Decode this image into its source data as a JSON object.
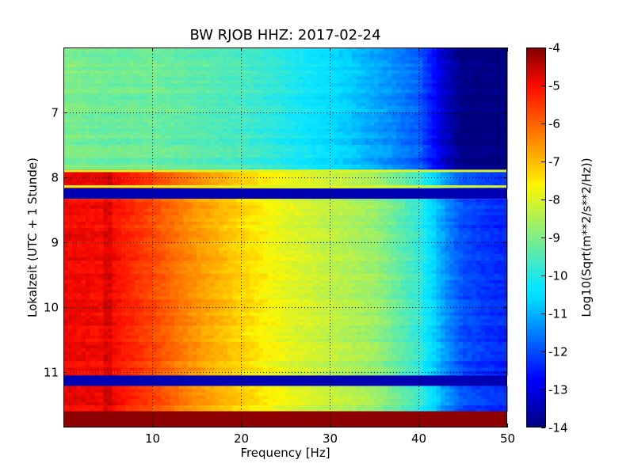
{
  "chart_data": {
    "type": "heatmap",
    "title": "BW RJOB HHZ: 2017-02-24",
    "xlabel": "Frequency [Hz]",
    "ylabel": "Lokalzeit (UTC + 1 Stunde)",
    "colorbar_label": "Log10(Sqrt(m**2/s**2/Hz))",
    "xlim": [
      0,
      50
    ],
    "ylim": [
      6.0,
      11.85
    ],
    "y_inverted": true,
    "x_ticks": [
      "10",
      "20",
      "30",
      "40",
      "50"
    ],
    "x_tick_values": [
      10,
      20,
      30,
      40,
      50
    ],
    "y_ticks": [
      "7",
      "8",
      "9",
      "10",
      "11"
    ],
    "y_tick_values": [
      7,
      8,
      9,
      10,
      11
    ],
    "colorbar_ticks": [
      "-4",
      "-5",
      "-6",
      "-7",
      "-8",
      "-9",
      "-10",
      "-11",
      "-12",
      "-13",
      "-14"
    ],
    "colorbar_tick_values": [
      -4,
      -5,
      -6,
      -7,
      -8,
      -9,
      -10,
      -11,
      -12,
      -13,
      -14
    ],
    "clim": [
      -14,
      -4
    ],
    "colormap": "jet",
    "grid": true,
    "grid_style": "dotted",
    "frequency_profile": {
      "frequency": [
        0,
        4.5,
        5,
        5.5,
        10,
        15,
        20,
        25,
        30,
        35,
        40,
        43,
        45,
        48,
        50
      ],
      "morning_segment": [
        -9,
        -9.2,
        -9.2,
        -9.2,
        -9.2,
        -9.4,
        -9.6,
        -10,
        -10.5,
        -11.1,
        -11.8,
        -13.3,
        -14,
        -14,
        -14
      ],
      "daytime_segment": [
        -4.9,
        -5.0,
        -4.5,
        -5.0,
        -5.7,
        -6.6,
        -7.3,
        -7.9,
        -8.3,
        -8.7,
        -9.8,
        -11.3,
        -12,
        -12.3,
        -12.4
      ]
    },
    "time_segments": [
      {
        "label": "morning_segment",
        "start": 6.0,
        "end": 7.88
      },
      {
        "label": "daytime_segment",
        "start": 7.88,
        "end": 8.17
      },
      {
        "label": "gap",
        "start": 8.17,
        "end": 8.33,
        "value": -13.5
      },
      {
        "label": "daytime_segment",
        "start": 8.33,
        "end": 11.05
      },
      {
        "label": "gap",
        "start": 11.05,
        "end": 11.21,
        "value": -13.5
      },
      {
        "label": "daytime_segment",
        "start": 11.21,
        "end": 11.6
      },
      {
        "label": "saturated",
        "start": 11.6,
        "end": 11.85,
        "value": -4.1
      }
    ],
    "thin_lines": [
      {
        "time": 7.9,
        "value": -8.0
      },
      {
        "time": 8.14,
        "value": -8.0
      }
    ],
    "color_scale": {
      "stops": [
        0,
        0.11,
        0.125,
        0.34,
        0.375,
        0.64,
        0.66,
        0.89,
        0.91,
        1
      ],
      "colors": [
        "#00007f",
        "#0000f1",
        "#0000ff",
        "#00dcff",
        "#0de5ff",
        "#fff600",
        "#ffde00",
        "#ff1300",
        "#f10700",
        "#7f0000"
      ]
    }
  }
}
